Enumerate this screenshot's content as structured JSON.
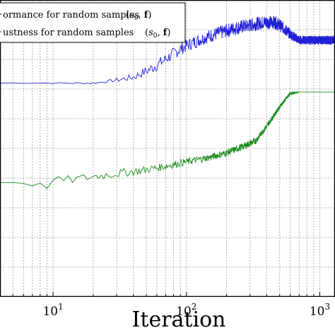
{
  "chart_data": {
    "type": "line",
    "title": "",
    "xlabel": "Iteration",
    "ylabel": "",
    "x_scale": "log",
    "xlim": [
      4,
      1300
    ],
    "ylim": [
      0,
      1
    ],
    "grid": true,
    "legend_position": "top-left",
    "x_ticks": [
      {
        "base": "10",
        "exp": "1",
        "value": 10
      },
      {
        "base": "10",
        "exp": "2",
        "value": 100
      },
      {
        "base": "10",
        "exp": "3",
        "value": 1000
      }
    ],
    "series": [
      {
        "name": "ormance for random samples",
        "name_math": "(s0, f)",
        "color": "#1f1fd6",
        "noise_start": 0.02,
        "points": [
          [
            4,
            0.72
          ],
          [
            8,
            0.72
          ],
          [
            12,
            0.72
          ],
          [
            16,
            0.72
          ],
          [
            20,
            0.72
          ],
          [
            25,
            0.725
          ],
          [
            30,
            0.73
          ],
          [
            40,
            0.74
          ],
          [
            50,
            0.76
          ],
          [
            60,
            0.78
          ],
          [
            75,
            0.81
          ],
          [
            90,
            0.835
          ],
          [
            110,
            0.855
          ],
          [
            140,
            0.875
          ],
          [
            180,
            0.89
          ],
          [
            230,
            0.905
          ],
          [
            300,
            0.915
          ],
          [
            380,
            0.925
          ],
          [
            460,
            0.925
          ],
          [
            520,
            0.91
          ],
          [
            600,
            0.885
          ],
          [
            700,
            0.865
          ],
          [
            820,
            0.865
          ],
          [
            1000,
            0.865
          ],
          [
            1300,
            0.865
          ]
        ],
        "noise": [
          [
            4,
            0.0
          ],
          [
            25,
            0.004
          ],
          [
            40,
            0.012
          ],
          [
            60,
            0.02
          ],
          [
            100,
            0.022
          ],
          [
            250,
            0.024
          ],
          [
            500,
            0.022
          ],
          [
            700,
            0.015
          ],
          [
            1300,
            0.015
          ]
        ]
      },
      {
        "name": "ustness for random samples",
        "name_math": "(s0, f)",
        "color": "#1a8a1a",
        "points": [
          [
            4,
            0.385
          ],
          [
            6,
            0.385
          ],
          [
            7,
            0.38
          ],
          [
            8,
            0.375
          ],
          [
            9,
            0.375
          ],
          [
            10,
            0.39
          ],
          [
            14,
            0.395
          ],
          [
            20,
            0.405
          ],
          [
            30,
            0.415
          ],
          [
            45,
            0.425
          ],
          [
            70,
            0.44
          ],
          [
            100,
            0.455
          ],
          [
            150,
            0.47
          ],
          [
            200,
            0.485
          ],
          [
            260,
            0.505
          ],
          [
            330,
            0.525
          ],
          [
            400,
            0.575
          ],
          [
            500,
            0.64
          ],
          [
            600,
            0.685
          ],
          [
            700,
            0.69
          ],
          [
            900,
            0.69
          ],
          [
            1300,
            0.69
          ]
        ],
        "noise": [
          [
            4,
            0.0
          ],
          [
            10,
            0.015
          ],
          [
            30,
            0.014
          ],
          [
            100,
            0.012
          ],
          [
            300,
            0.012
          ],
          [
            600,
            0.006
          ],
          [
            700,
            0.0
          ],
          [
            1300,
            0.0
          ]
        ]
      }
    ]
  }
}
